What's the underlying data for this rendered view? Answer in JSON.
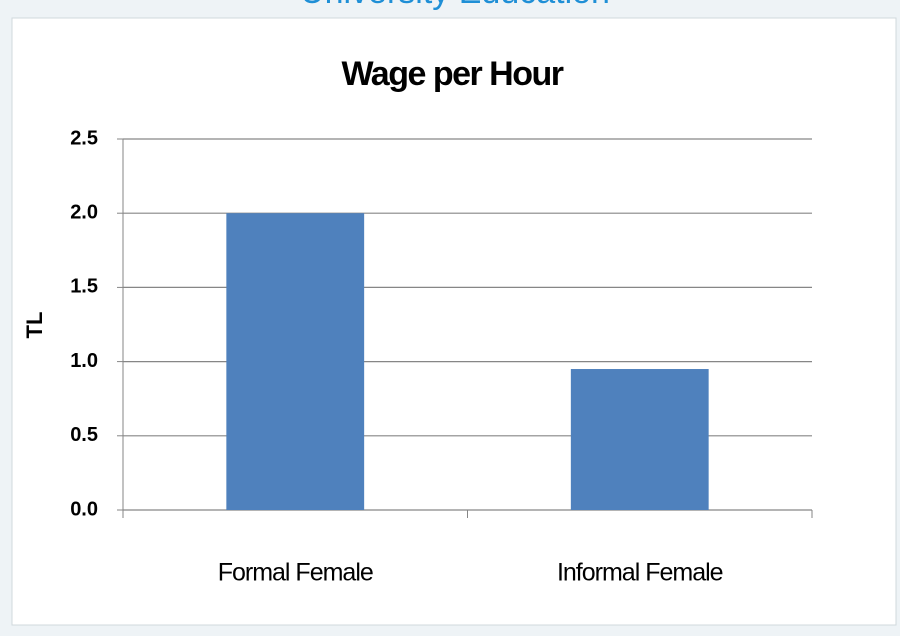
{
  "header": {
    "title": "University Education"
  },
  "chart_data": {
    "type": "bar",
    "title": "Wage per Hour",
    "y_label": "TL",
    "categories": [
      "Formal Female",
      "Informal Female"
    ],
    "values": [
      2.0,
      0.95
    ],
    "color": "#4f81bd",
    "ylim": [
      0,
      2.5
    ],
    "yticks": [
      {
        "value": 0,
        "label": "0.0"
      },
      0.5,
      {
        "value": 1,
        "label": "1.0"
      },
      1.5,
      {
        "value": 2,
        "label": "2.0"
      },
      2.5
    ],
    "grid": true
  }
}
